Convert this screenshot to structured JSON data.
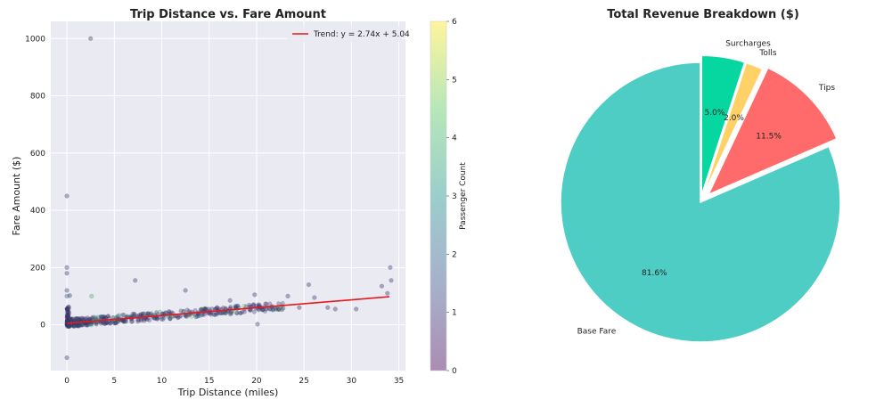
{
  "chart_data": [
    {
      "type": "scatter",
      "title": "Trip Distance vs. Fare Amount",
      "xlabel": "Trip Distance (miles)",
      "ylabel": "Fare Amount ($)",
      "xlim": [
        -1.7,
        35.7
      ],
      "ylim": [
        -160,
        1060
      ],
      "xticks": [
        "0",
        "5",
        "10",
        "15",
        "20",
        "25",
        "30",
        "35"
      ],
      "yticks": [
        "0",
        "200",
        "400",
        "600",
        "800",
        "1000"
      ],
      "grid": true,
      "legend": {
        "position": "top-right",
        "entries": [
          "Trend: y = 2.74x + 5.04"
        ]
      },
      "trend": {
        "label": "Trend: y = 2.74x + 5.04",
        "slope": 2.74,
        "intercept": 5.04,
        "x_range": [
          0,
          34
        ],
        "color": "#e41a1c"
      },
      "colorbar": {
        "label": "Passenger Count",
        "min": 0,
        "max": 6,
        "ticks": [
          "0",
          "1",
          "2",
          "3",
          "4",
          "5",
          "6"
        ],
        "colormap": "viridis"
      },
      "points": [
        {
          "x": 2.5,
          "y": 1000,
          "c": 1
        },
        {
          "x": 0,
          "y": 450,
          "c": 1
        },
        {
          "x": 0,
          "y": 200,
          "c": 1
        },
        {
          "x": 0,
          "y": 180,
          "c": 1
        },
        {
          "x": 0,
          "y": 120,
          "c": 1
        },
        {
          "x": 0,
          "y": 100,
          "c": 2
        },
        {
          "x": 0.3,
          "y": 102,
          "c": 1
        },
        {
          "x": 0,
          "y": -115,
          "c": 1
        },
        {
          "x": 2.6,
          "y": 100,
          "c": 4
        },
        {
          "x": 7.2,
          "y": 155,
          "c": 1
        },
        {
          "x": 12.5,
          "y": 120,
          "c": 1
        },
        {
          "x": 17.2,
          "y": 85,
          "c": 1
        },
        {
          "x": 19.8,
          "y": 105,
          "c": 1
        },
        {
          "x": 20.1,
          "y": 2,
          "c": 1
        },
        {
          "x": 23.3,
          "y": 100,
          "c": 1
        },
        {
          "x": 25.5,
          "y": 140,
          "c": 1
        },
        {
          "x": 26.1,
          "y": 95,
          "c": 1
        },
        {
          "x": 30.5,
          "y": 55,
          "c": 1
        },
        {
          "x": 33.2,
          "y": 135,
          "c": 1
        },
        {
          "x": 33.8,
          "y": 110,
          "c": 1
        },
        {
          "x": 34.1,
          "y": 200,
          "c": 1
        },
        {
          "x": 34.2,
          "y": 155,
          "c": 1
        },
        {
          "x": 27.5,
          "y": 60,
          "c": 1
        },
        {
          "x": 28.3,
          "y": 55,
          "c": 1
        },
        {
          "x": 24.5,
          "y": 60,
          "c": 1
        },
        {
          "x": 22.8,
          "y": 58,
          "c": 2
        },
        {
          "x": 21.0,
          "y": 55,
          "c": 1
        }
      ],
      "dense_cluster": {
        "x_range": [
          0,
          23
        ],
        "base": 6,
        "slope": 2.6,
        "spread": 14,
        "count": 520
      }
    },
    {
      "type": "pie",
      "title": "Total Revenue Breakdown ($)",
      "slices": [
        {
          "label": "Base Fare",
          "value": 81.6,
          "pct_label": "81.6%",
          "color": "#4ecdc4",
          "explode": 0
        },
        {
          "label": "Tips",
          "value": 11.5,
          "pct_label": "11.5%",
          "color": "#ff6b6b",
          "explode": 0.08
        },
        {
          "label": "Tolls",
          "value": 2.0,
          "pct_label": "2.0%",
          "color": "#ffd166",
          "explode": 0.05
        },
        {
          "label": "Surcharges",
          "value": 5.0,
          "pct_label": "5.0%",
          "color": "#06d6a0",
          "explode": 0.05
        }
      ],
      "start_angle_deg": 90
    }
  ]
}
